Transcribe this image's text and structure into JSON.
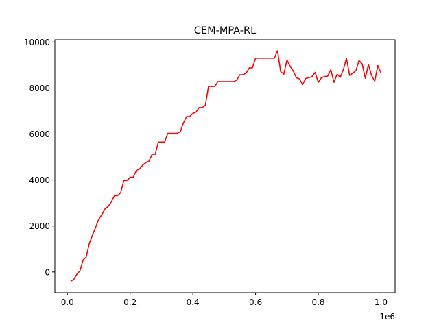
{
  "chart_data": {
    "type": "line",
    "title": "CEM-MPA-RL",
    "xlabel": "",
    "ylabel": "",
    "x_offset_label": "1e6",
    "xlim": [
      -40000,
      1045000
    ],
    "ylim": [
      -900,
      10100
    ],
    "x_ticks": [
      0.0,
      0.2,
      0.4,
      0.6,
      0.8,
      1.0
    ],
    "x_tick_labels": [
      "0.0",
      "0.2",
      "0.4",
      "0.6",
      "0.8",
      "1.0"
    ],
    "y_ticks": [
      0,
      2000,
      4000,
      6000,
      8000,
      10000
    ],
    "y_tick_labels": [
      "0",
      "2000",
      "4000",
      "6000",
      "8000",
      "10000"
    ],
    "grid": false,
    "series": [
      {
        "color": "#ff0000",
        "points": [
          [
            10000,
            -400
          ],
          [
            20000,
            -330
          ],
          [
            30000,
            -100
          ],
          [
            40000,
            50
          ],
          [
            50000,
            520
          ],
          [
            60000,
            650
          ],
          [
            70000,
            1250
          ],
          [
            80000,
            1600
          ],
          [
            90000,
            1950
          ],
          [
            100000,
            2300
          ],
          [
            110000,
            2500
          ],
          [
            120000,
            2750
          ],
          [
            130000,
            2850
          ],
          [
            140000,
            3050
          ],
          [
            150000,
            3320
          ],
          [
            160000,
            3320
          ],
          [
            170000,
            3450
          ],
          [
            180000,
            3980
          ],
          [
            190000,
            3980
          ],
          [
            200000,
            4120
          ],
          [
            210000,
            4120
          ],
          [
            220000,
            4420
          ],
          [
            230000,
            4480
          ],
          [
            240000,
            4650
          ],
          [
            250000,
            4750
          ],
          [
            260000,
            4820
          ],
          [
            270000,
            5120
          ],
          [
            280000,
            5120
          ],
          [
            290000,
            5650
          ],
          [
            300000,
            5650
          ],
          [
            310000,
            5650
          ],
          [
            320000,
            6030
          ],
          [
            330000,
            6030
          ],
          [
            340000,
            6030
          ],
          [
            350000,
            6030
          ],
          [
            360000,
            6100
          ],
          [
            370000,
            6480
          ],
          [
            380000,
            6760
          ],
          [
            390000,
            6760
          ],
          [
            400000,
            6900
          ],
          [
            410000,
            6950
          ],
          [
            420000,
            7150
          ],
          [
            430000,
            7150
          ],
          [
            440000,
            7250
          ],
          [
            450000,
            8070
          ],
          [
            460000,
            8070
          ],
          [
            470000,
            8070
          ],
          [
            480000,
            8280
          ],
          [
            490000,
            8280
          ],
          [
            500000,
            8280
          ],
          [
            510000,
            8280
          ],
          [
            520000,
            8280
          ],
          [
            530000,
            8280
          ],
          [
            540000,
            8350
          ],
          [
            550000,
            8580
          ],
          [
            560000,
            8580
          ],
          [
            570000,
            8650
          ],
          [
            580000,
            8880
          ],
          [
            590000,
            8880
          ],
          [
            600000,
            9300
          ],
          [
            610000,
            9300
          ],
          [
            620000,
            9300
          ],
          [
            630000,
            9300
          ],
          [
            640000,
            9300
          ],
          [
            650000,
            9300
          ],
          [
            660000,
            9300
          ],
          [
            670000,
            9620
          ],
          [
            680000,
            8720
          ],
          [
            690000,
            8600
          ],
          [
            700000,
            9220
          ],
          [
            710000,
            8950
          ],
          [
            720000,
            8750
          ],
          [
            730000,
            8450
          ],
          [
            740000,
            8400
          ],
          [
            750000,
            8150
          ],
          [
            760000,
            8420
          ],
          [
            770000,
            8450
          ],
          [
            780000,
            8500
          ],
          [
            790000,
            8680
          ],
          [
            800000,
            8250
          ],
          [
            810000,
            8450
          ],
          [
            820000,
            8500
          ],
          [
            830000,
            8520
          ],
          [
            840000,
            8800
          ],
          [
            850000,
            8250
          ],
          [
            860000,
            8600
          ],
          [
            870000,
            8470
          ],
          [
            880000,
            8800
          ],
          [
            890000,
            9300
          ],
          [
            900000,
            8550
          ],
          [
            910000,
            8650
          ],
          [
            920000,
            8750
          ],
          [
            930000,
            9200
          ],
          [
            940000,
            9050
          ],
          [
            950000,
            8430
          ],
          [
            960000,
            9020
          ],
          [
            970000,
            8550
          ],
          [
            980000,
            8300
          ],
          [
            990000,
            8980
          ],
          [
            1000000,
            8650
          ]
        ]
      }
    ]
  }
}
